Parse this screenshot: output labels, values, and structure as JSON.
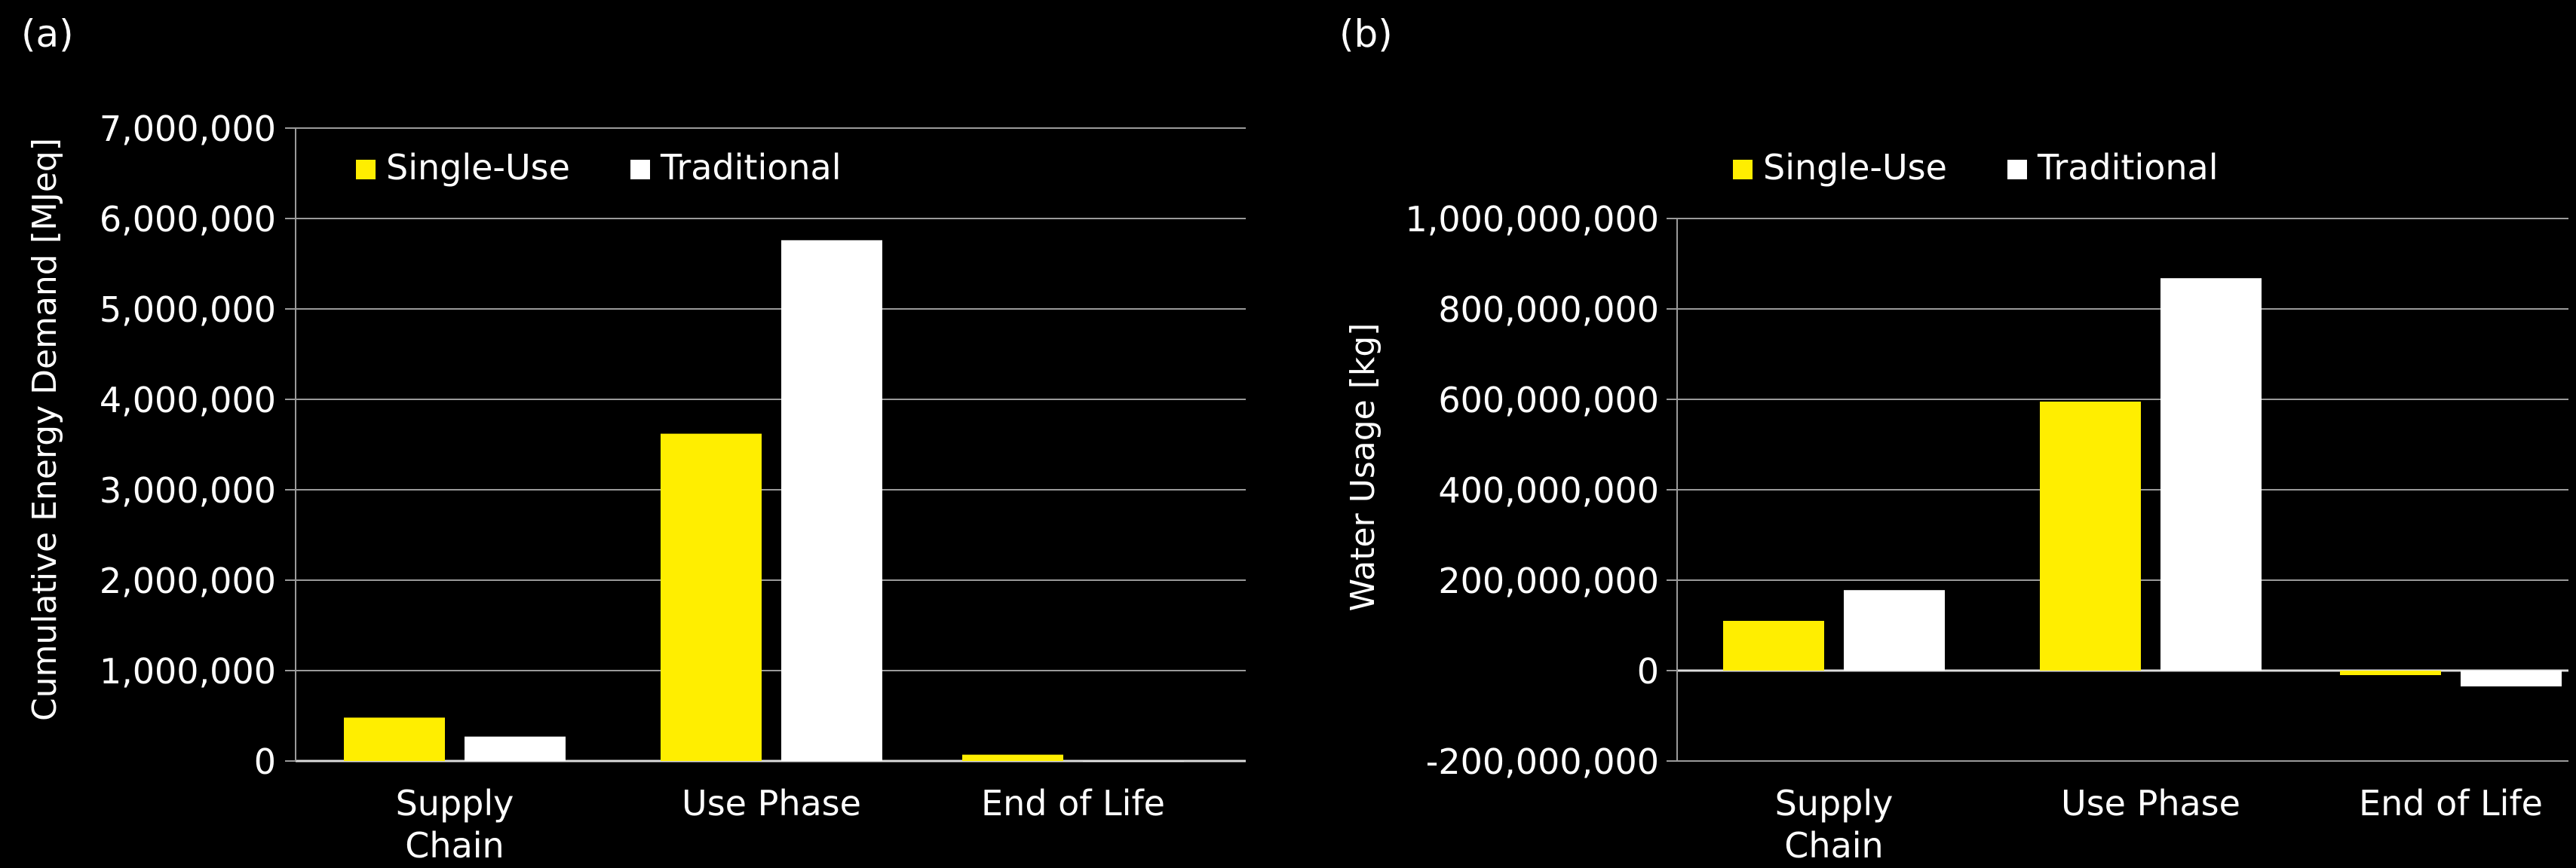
{
  "chart_data": [
    {
      "type": "bar",
      "panel_label": "(a)",
      "categories": [
        "Supply\nChain",
        "Use Phase",
        "End of Life"
      ],
      "series": [
        {
          "name": "Single-Use",
          "color": "#ffee00",
          "values": [
            480000,
            3620000,
            70000
          ]
        },
        {
          "name": "Traditional",
          "color": "#ffffff",
          "values": [
            270000,
            5760000,
            0
          ]
        }
      ],
      "ylabel": "Cumulative Energy Demand [MJeq]",
      "ylim": [
        0,
        7000000
      ],
      "yticks": [
        0,
        1000000,
        2000000,
        3000000,
        4000000,
        5000000,
        6000000,
        7000000
      ],
      "ytick_labels": [
        "0",
        "1,000,000",
        "2,000,000",
        "3,000,000",
        "4,000,000",
        "5,000,000",
        "6,000,000",
        "7,000,000"
      ],
      "grid": true,
      "legend": "top-left"
    },
    {
      "type": "bar",
      "panel_label": "(b)",
      "categories": [
        "Supply\nChain",
        "Use Phase",
        "End of Life"
      ],
      "series": [
        {
          "name": "Single-Use",
          "color": "#ffee00",
          "values": [
            110000000,
            595000000,
            -10000000
          ]
        },
        {
          "name": "Traditional",
          "color": "#ffffff",
          "values": [
            178000000,
            868000000,
            -35000000
          ]
        }
      ],
      "ylabel": "Water Usage [kg]",
      "ylim": [
        -200000000,
        1000000000
      ],
      "yticks": [
        -200000000,
        0,
        200000000,
        400000000,
        600000000,
        800000000,
        1000000000
      ],
      "ytick_labels": [
        "-200,000,000",
        "0",
        "200,000,000",
        "400,000,000",
        "600,000,000",
        "800,000,000",
        "1,000,000,000"
      ],
      "grid": true,
      "legend": "top-left"
    }
  ]
}
